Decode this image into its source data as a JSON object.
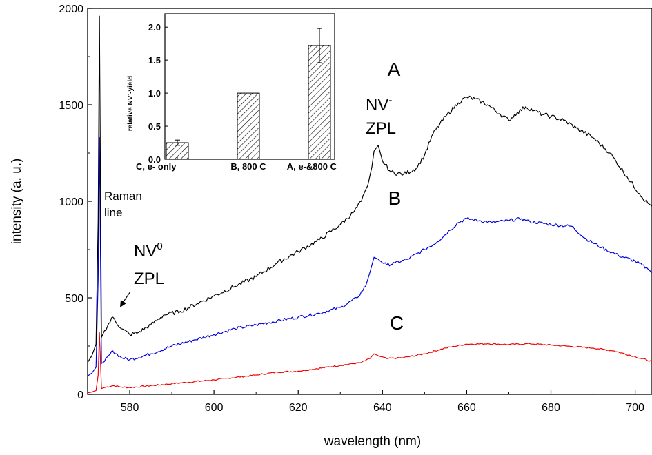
{
  "chart_data": [
    {
      "type": "line",
      "xlabel": "wavelength (nm)",
      "ylabel": "intensity (a. u.)",
      "xlim": [
        570,
        704
      ],
      "ylim": [
        0,
        2000
      ],
      "x_ticks": [
        580,
        600,
        620,
        640,
        660,
        680,
        700
      ],
      "y_ticks": [
        0,
        500,
        1000,
        1500,
        2000
      ],
      "grid": false,
      "series": [
        {
          "name": "A",
          "color": "#000000",
          "x": [
            570,
            571,
            572,
            572.5,
            572.8,
            573.3,
            574,
            576,
            578,
            580,
            582,
            585,
            588,
            592,
            596,
            600,
            605,
            610,
            615,
            620,
            625,
            630,
            633,
            635,
            636.5,
            637.5,
            638,
            639,
            640,
            642,
            645,
            648,
            650,
            652,
            655,
            658,
            660,
            662,
            665,
            668,
            670,
            672,
            674,
            676,
            678,
            680,
            683,
            686,
            690,
            694,
            698,
            701,
            703,
            704
          ],
          "y": [
            165,
            200,
            260,
            900,
            1960,
            295,
            330,
            400,
            340,
            310,
            320,
            360,
            410,
            430,
            470,
            510,
            560,
            610,
            680,
            740,
            800,
            880,
            940,
            1000,
            1080,
            1180,
            1260,
            1290,
            1210,
            1150,
            1140,
            1170,
            1240,
            1350,
            1440,
            1510,
            1540,
            1530,
            1500,
            1450,
            1420,
            1460,
            1490,
            1470,
            1450,
            1440,
            1420,
            1380,
            1330,
            1250,
            1130,
            1040,
            990,
            975
          ]
        },
        {
          "name": "B",
          "color": "#0000dd",
          "x": [
            570,
            571,
            572,
            572.5,
            572.8,
            573.3,
            574,
            576,
            578,
            580,
            585,
            590,
            595,
            600,
            605,
            610,
            615,
            620,
            625,
            630,
            634,
            636,
            637,
            638,
            639,
            641,
            643,
            646,
            650,
            653,
            656,
            658,
            660,
            663,
            666,
            670,
            673,
            675,
            680,
            685,
            688,
            692,
            696,
            700,
            703,
            704
          ],
          "y": [
            95,
            110,
            140,
            600,
            1330,
            160,
            170,
            225,
            190,
            180,
            210,
            250,
            280,
            310,
            340,
            360,
            380,
            400,
            420,
            450,
            500,
            560,
            630,
            710,
            700,
            670,
            680,
            700,
            750,
            790,
            850,
            890,
            910,
            900,
            890,
            900,
            910,
            895,
            880,
            870,
            810,
            760,
            720,
            690,
            650,
            630
          ]
        },
        {
          "name": "C",
          "color": "#ee0000",
          "x": [
            570,
            571,
            572,
            572.5,
            572.8,
            573.3,
            574,
            576,
            578,
            580,
            590,
            600,
            610,
            615,
            620,
            630,
            635,
            637,
            638,
            639,
            641,
            645,
            650,
            655,
            660,
            665,
            670,
            675,
            680,
            685,
            690,
            695,
            700,
            704
          ],
          "y": [
            8,
            12,
            20,
            100,
            320,
            30,
            35,
            45,
            38,
            35,
            55,
            75,
            100,
            115,
            120,
            150,
            165,
            185,
            210,
            200,
            185,
            190,
            210,
            240,
            260,
            262,
            258,
            262,
            255,
            248,
            240,
            225,
            195,
            170
          ]
        }
      ],
      "curve_labels": [
        "A",
        "B",
        "C"
      ],
      "annotations": {
        "raman": [
          "Raman",
          "line"
        ],
        "nv0_main": "NV",
        "nv0_sup": "0",
        "nv0_zpl": "ZPL",
        "nvm_main": "NV",
        "nvm_sup": "-",
        "nvm_zpl": "ZPL"
      }
    },
    {
      "type": "bar",
      "inset": true,
      "categories": [
        "C, e- only",
        "B, 800 C",
        "A, e-&800 C"
      ],
      "values": [
        0.25,
        1.0,
        1.72
      ],
      "errors": [
        0.04,
        0,
        0.26
      ],
      "ylabel_parts": [
        "relative NV",
        "-",
        "-yield"
      ],
      "ylim": [
        0,
        2.2
      ],
      "y_ticks": [
        "0.0",
        "0.5",
        "1.0",
        "1.5",
        "2.0"
      ],
      "bar_pattern": "diagonal-hatch"
    }
  ]
}
